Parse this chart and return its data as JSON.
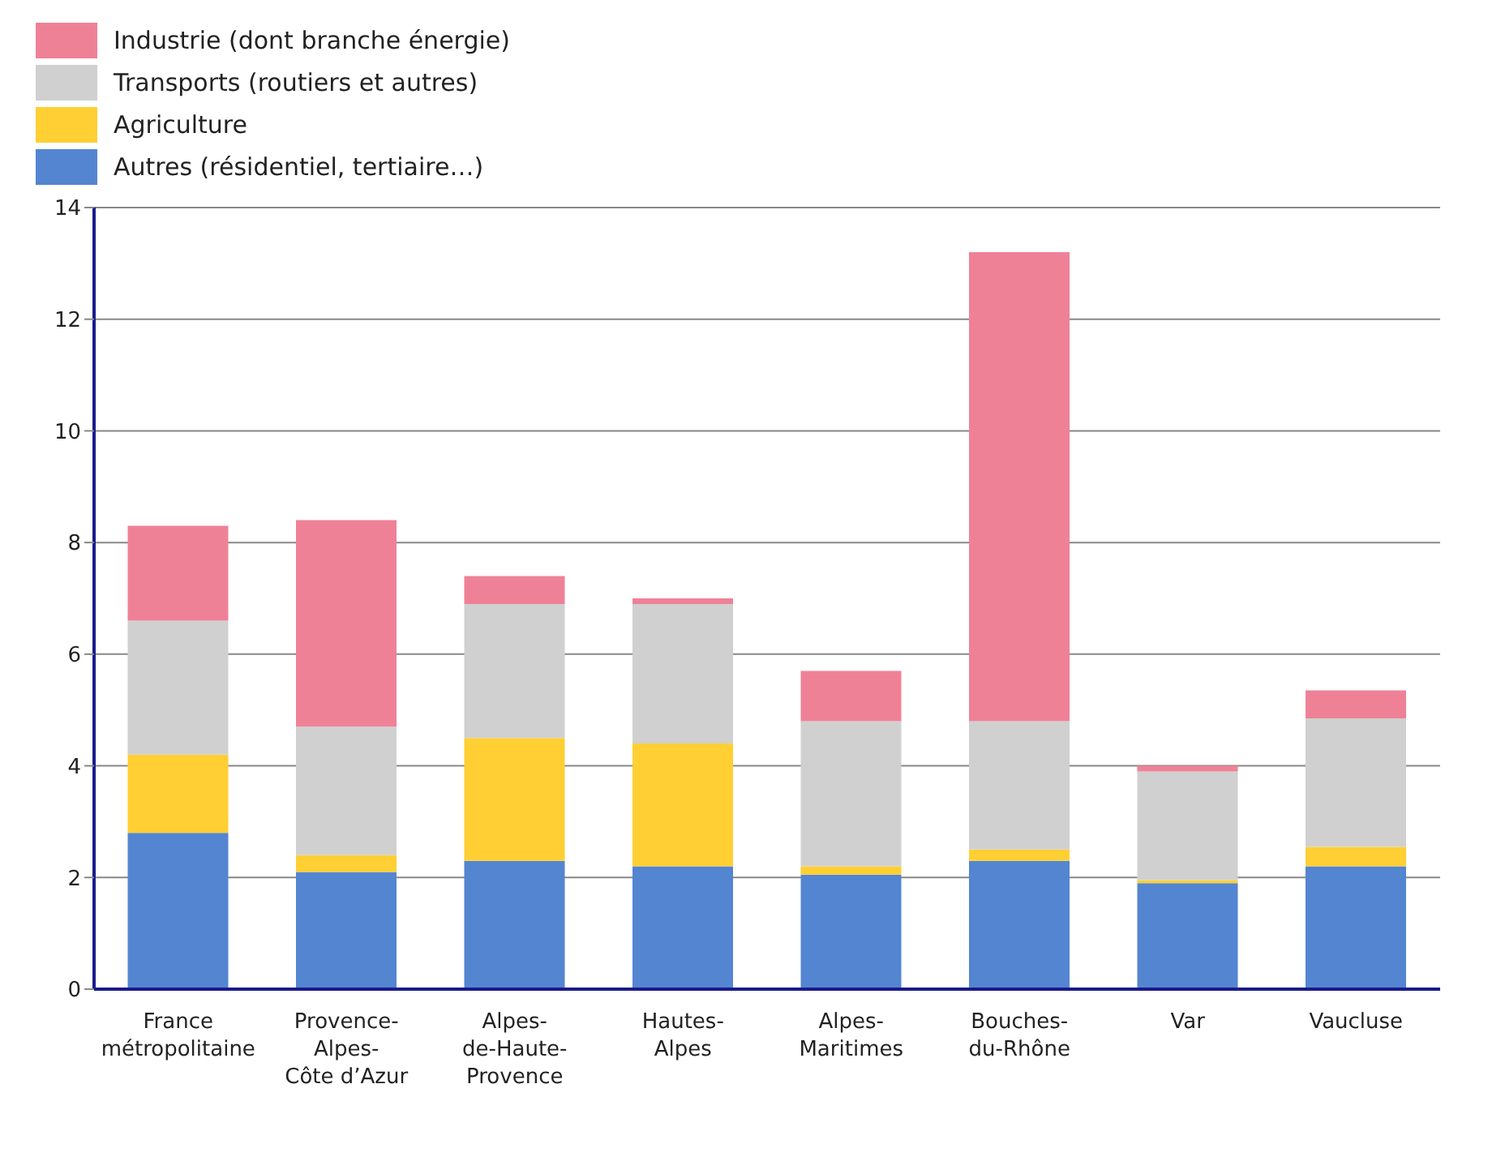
{
  "chart_data": {
    "type": "bar",
    "stacked": true,
    "legend": "top left",
    "grid": "y",
    "categories": [
      "France\nmétropolitaine",
      "Provence-\nAlpes-\nCôte d’Azur",
      "Alpes-\nde-Haute-\nProvence",
      "Hautes-\nAlpes",
      "Alpes-\nMaritimes",
      "Bouches-\ndu-Rhône",
      "Var",
      "Vaucluse"
    ],
    "series": [
      {
        "name": "Autres (résidentiel, tertiaire…)",
        "color": "#5385d0",
        "values": [
          2.8,
          2.1,
          2.3,
          2.2,
          2.05,
          2.3,
          1.9,
          2.2
        ]
      },
      {
        "name": "Agriculture",
        "color": "#ffcf33",
        "values": [
          1.4,
          0.3,
          2.2,
          2.2,
          0.15,
          0.2,
          0.05,
          0.35
        ]
      },
      {
        "name": "Transports (routiers et autres)",
        "color": "#d0d0d0",
        "values": [
          2.4,
          2.3,
          2.4,
          2.5,
          2.6,
          2.3,
          1.95,
          2.3
        ]
      },
      {
        "name": "Industrie (dont branche énergie)",
        "color": "#ef8197",
        "values": [
          1.7,
          3.7,
          0.5,
          0.1,
          0.9,
          8.4,
          0.1,
          0.5
        ]
      }
    ],
    "ylim": [
      0,
      14
    ],
    "yticks": [
      0,
      2,
      4,
      6,
      8,
      10,
      12,
      14
    ]
  }
}
